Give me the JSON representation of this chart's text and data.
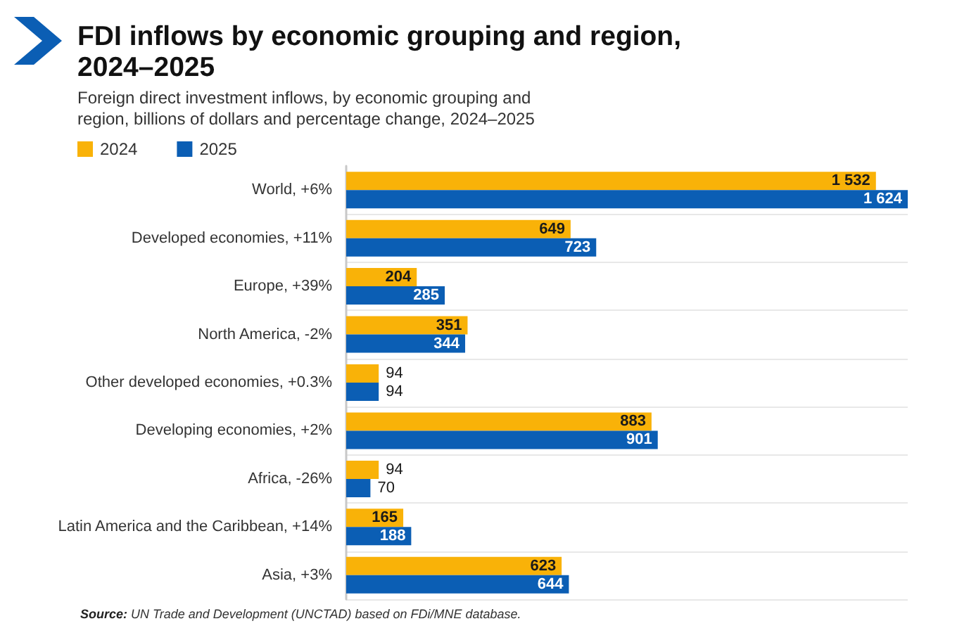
{
  "chart_data": {
    "type": "bar",
    "orientation": "horizontal",
    "title": "FDI inflows by economic grouping and region, 2024–2025",
    "subtitle": "Foreign direct investment inflows, by economic grouping and region, billions of dollars and percentage change, 2024–2025",
    "categories": [
      "World, +6%",
      "Developed economies, +11%",
      "Europe, +39%",
      "North America, -2%",
      "Other developed economies, +0.3%",
      "Developing economies, +2%",
      "Africa, -26%",
      "Latin America and the Caribbean, +14%",
      "Asia, +3%"
    ],
    "series": [
      {
        "name": "2024",
        "color": "#f9b208",
        "values": [
          1532,
          649,
          204,
          351,
          94,
          883,
          94,
          165,
          623
        ],
        "value_labels": [
          "1 532",
          "649",
          "204",
          "351",
          "94",
          "883",
          "94",
          "165",
          "623"
        ]
      },
      {
        "name": "2025",
        "color": "#0b5eb4",
        "values": [
          1624,
          723,
          285,
          344,
          94,
          901,
          70,
          188,
          644
        ],
        "value_labels": [
          "1 624",
          "723",
          "285",
          "344",
          "94",
          "901",
          "70",
          "188",
          "644"
        ]
      }
    ],
    "legend": "top left",
    "grid": "y",
    "annotations": [
      "Source: UN Trade and Development (UNCTAD) based on FDi/MNE database."
    ]
  }
}
